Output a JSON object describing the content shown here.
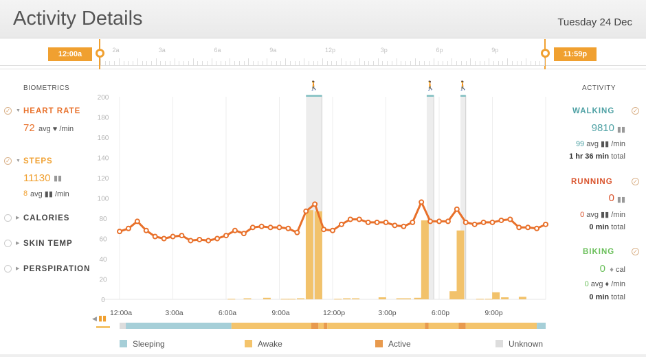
{
  "header": {
    "title": "Activity Details",
    "date": "Tuesday 24 Dec"
  },
  "range": {
    "start_label": "12:00a",
    "end_label": "11:59p",
    "hour_labels": [
      "2a",
      "3a",
      "6a",
      "9a",
      "12p",
      "3p",
      "6p",
      "9p"
    ]
  },
  "biometrics": {
    "heading": "BIOMETRICS",
    "heart_rate": {
      "name": "HEART RATE",
      "value": "72",
      "unit": "avg ♥ /min"
    },
    "steps": {
      "name": "STEPS",
      "value": "11130",
      "avg_value": "8",
      "avg_unit": "avg ▮▮ /min"
    },
    "calories": {
      "name": "CALORIES"
    },
    "skin_temp": {
      "name": "SKIN TEMP"
    },
    "perspiration": {
      "name": "PERSPIRATION"
    }
  },
  "activity": {
    "heading": "ACTIVITY",
    "walking": {
      "name": "WALKING",
      "value": "9810",
      "avg_value": "99",
      "avg_unit": "avg ▮▮ /min",
      "total_value": "1 hr 36 min",
      "total_unit": "total"
    },
    "running": {
      "name": "RUNNING",
      "value": "0",
      "avg_value": "0",
      "avg_unit": "avg ▮▮ /min",
      "total_value": "0 min",
      "total_unit": "total"
    },
    "biking": {
      "name": "BIKING",
      "value": "0",
      "value_unit": "cal",
      "avg_value": "0",
      "avg_unit": "avg ♦ /min",
      "total_value": "0 min",
      "total_unit": "total"
    }
  },
  "legend": {
    "sleeping": "Sleeping",
    "awake": "Awake",
    "active": "Active",
    "unknown": "Unknown"
  },
  "colors": {
    "accent": "#f0a030",
    "heart_rate": "#e8702a",
    "steps": "#f2c26b",
    "walking": "#4ea1a4",
    "running": "#d9532c",
    "biking": "#6abf5a",
    "sleeping": "#a6cfd8",
    "awake": "#f4c46c",
    "active": "#e89a4e",
    "unknown": "#dddddd"
  },
  "chart_data": {
    "type": "line",
    "ylim": [
      0,
      200
    ],
    "yticks": [
      0,
      20,
      40,
      60,
      80,
      100,
      120,
      140,
      160,
      180,
      200
    ],
    "xticks": [
      "12:00a",
      "3:00a",
      "6:00a",
      "9:00a",
      "12:00p",
      "3:00p",
      "6:00p",
      "9:00p"
    ],
    "x_hours": [
      0,
      24
    ],
    "series": [
      {
        "kind": "line",
        "points": [
          [
            0,
            67
          ],
          [
            0.5,
            70
          ],
          [
            1,
            77
          ],
          [
            1.5,
            68
          ],
          [
            2,
            62
          ],
          [
            2.5,
            60
          ],
          [
            3,
            62
          ],
          [
            3.5,
            63
          ],
          [
            4,
            58
          ],
          [
            4.5,
            59
          ],
          [
            5,
            58
          ],
          [
            5.5,
            60
          ],
          [
            6,
            63
          ],
          [
            6.5,
            68
          ],
          [
            7,
            65
          ],
          [
            7.5,
            71
          ],
          [
            8,
            72
          ],
          [
            8.5,
            71
          ],
          [
            9,
            71
          ],
          [
            9.5,
            70
          ],
          [
            10,
            66
          ],
          [
            10.5,
            87
          ],
          [
            11,
            94
          ],
          [
            11.5,
            69
          ],
          [
            12,
            68
          ],
          [
            12.5,
            74
          ],
          [
            13,
            79
          ],
          [
            13.5,
            79
          ],
          [
            14,
            76
          ],
          [
            14.5,
            76
          ],
          [
            15,
            76
          ],
          [
            15.5,
            73
          ],
          [
            16,
            72
          ],
          [
            16.5,
            76
          ],
          [
            17,
            96
          ],
          [
            17.5,
            77
          ],
          [
            18,
            77
          ],
          [
            18.5,
            77
          ],
          [
            19,
            89
          ],
          [
            19.5,
            76
          ],
          [
            20,
            74
          ],
          [
            20.5,
            76
          ],
          [
            21,
            76
          ],
          [
            21.5,
            78
          ],
          [
            22,
            79
          ],
          [
            22.5,
            71
          ],
          [
            23,
            71
          ],
          [
            23.5,
            70
          ],
          [
            24,
            74
          ]
        ]
      },
      {
        "kind": "bar",
        "bars": [
          [
            6.3,
            0.5
          ],
          [
            7.2,
            1
          ],
          [
            8.3,
            1.5
          ],
          [
            9.3,
            0.5
          ],
          [
            9.7,
            0.5
          ],
          [
            10.2,
            1
          ],
          [
            10.7,
            88
          ],
          [
            11.2,
            87
          ],
          [
            12.3,
            0.5
          ],
          [
            12.8,
            1
          ],
          [
            13.3,
            1
          ],
          [
            14.8,
            2
          ],
          [
            15.8,
            1
          ],
          [
            16.2,
            1
          ],
          [
            16.8,
            1.5
          ],
          [
            17.2,
            78
          ],
          [
            18.8,
            8
          ],
          [
            19.2,
            68
          ],
          [
            20.3,
            0.5
          ],
          [
            20.8,
            0.5
          ],
          [
            21.2,
            7
          ],
          [
            21.7,
            2
          ],
          [
            22.7,
            2.5
          ]
        ]
      }
    ],
    "activity_markers_hours": [
      [
        10.5,
        11.4
      ],
      [
        17.3,
        17.7
      ],
      [
        19.2,
        19.5
      ]
    ]
  },
  "state_bar": [
    [
      "unknown",
      0,
      0.35
    ],
    [
      "sleeping",
      0.35,
      6.3
    ],
    [
      "awake",
      6.3,
      10.8
    ],
    [
      "active",
      10.8,
      11.2
    ],
    [
      "awake",
      11.2,
      11.5
    ],
    [
      "active",
      11.5,
      11.7
    ],
    [
      "awake",
      11.7,
      17.2
    ],
    [
      "active",
      17.2,
      17.4
    ],
    [
      "awake",
      17.4,
      19.1
    ],
    [
      "active",
      19.1,
      19.5
    ],
    [
      "awake",
      19.5,
      23.5
    ],
    [
      "sleeping",
      23.5,
      24
    ]
  ]
}
